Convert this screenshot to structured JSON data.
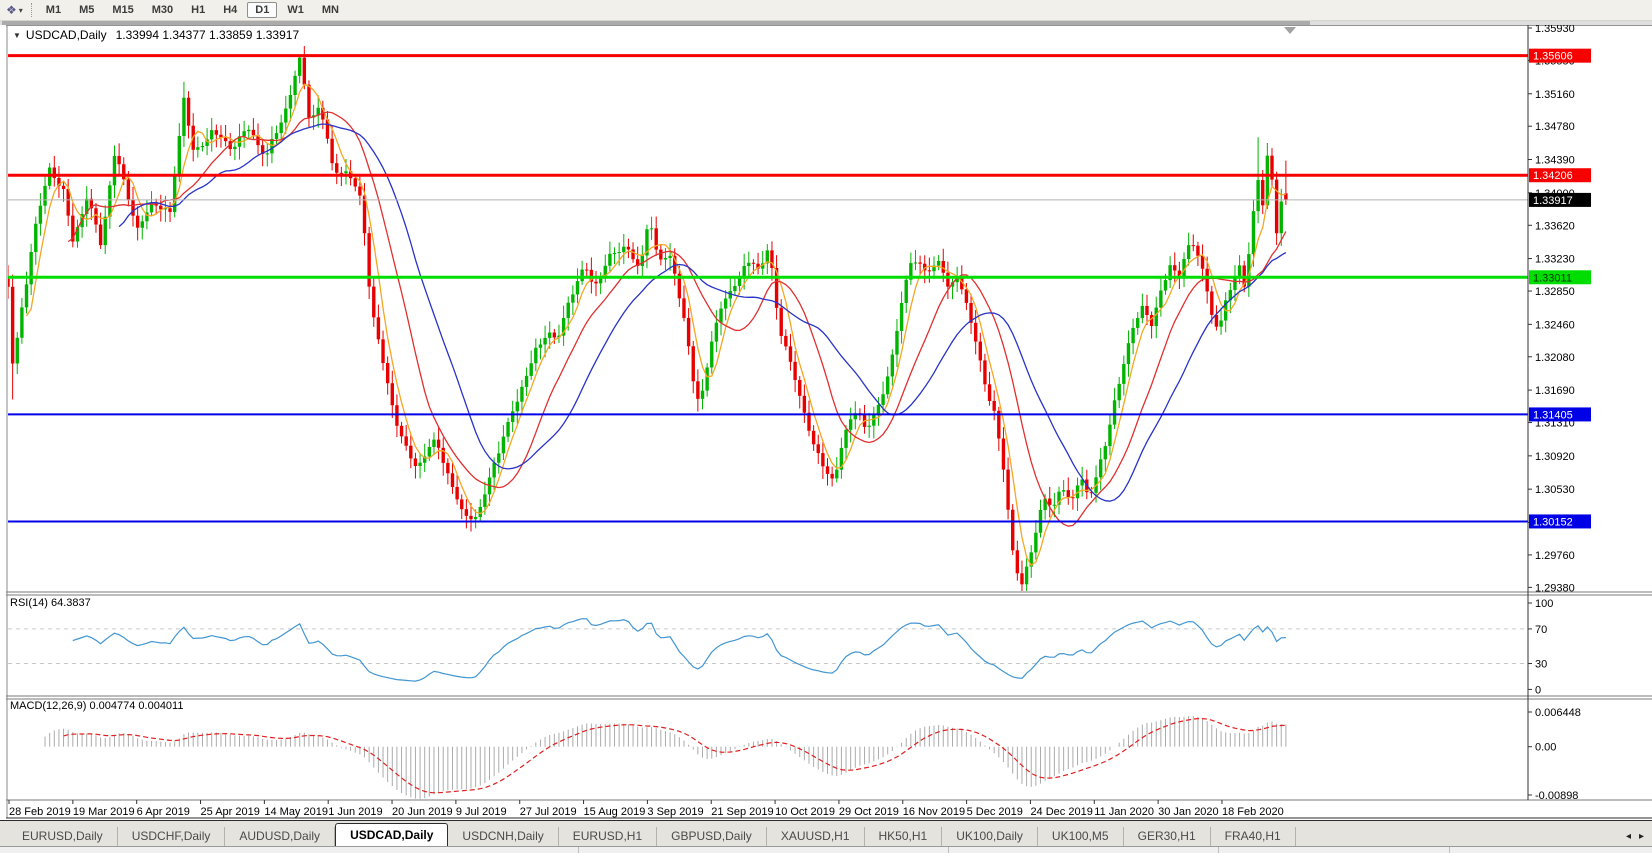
{
  "icons": {
    "charts_glyph": "❖",
    "caret_glyph": "▾",
    "title_caret": "▼",
    "shift_marker": "▼",
    "tab_prev": "◂",
    "tab_next": "▸"
  },
  "toolbar": {
    "timeframes": [
      "M1",
      "M5",
      "M15",
      "M30",
      "H1",
      "H4",
      "D1",
      "W1",
      "MN"
    ],
    "active_timeframe": "D1"
  },
  "chart": {
    "type": "candlestick",
    "symbol": "USDCAD,Daily",
    "ohlc_text": "1.33994 1.34377 1.33859 1.33917",
    "price_axis_ticks": [
      "1.35930",
      "1.35550",
      "1.35160",
      "1.34780",
      "1.34390",
      "1.34000",
      "1.33620",
      "1.33230",
      "1.32850",
      "1.32460",
      "1.32080",
      "1.31690",
      "1.31310",
      "1.30920",
      "1.30530",
      "1.30140",
      "1.29760",
      "1.29380"
    ],
    "hlines": [
      {
        "price": 1.35606,
        "label": "1.35606",
        "color": "#f60000",
        "thickness": 3,
        "label_bg": "#f60000",
        "label_fg": "#ffffff"
      },
      {
        "price": 1.34206,
        "label": "1.34206",
        "color": "#f60000",
        "thickness": 3,
        "label_bg": "#f60000",
        "label_fg": "#ffffff"
      },
      {
        "price": 1.33011,
        "label": "1.33011",
        "color": "#00dd00",
        "thickness": 3,
        "label_bg": "#00dd00",
        "label_fg": "#003300"
      },
      {
        "price": 1.31405,
        "label": "1.31405",
        "color": "#0000e6",
        "thickness": 2,
        "label_bg": "#0000e6",
        "label_fg": "#ffffff"
      },
      {
        "price": 1.30152,
        "label": "1.30152",
        "color": "#0000e6",
        "thickness": 2,
        "label_bg": "#0000e6",
        "label_fg": "#ffffff"
      }
    ],
    "current_price": {
      "price": 1.33917,
      "label": "1.33917",
      "line_color": "#b2b2b2",
      "label_bg": "#000000",
      "label_fg": "#ffffff"
    },
    "dates": [
      "28 Feb 2019",
      "19 Mar 2019",
      "6 Apr 2019",
      "25 Apr 2019",
      "14 May 2019",
      "1 Jun 2019",
      "20 Jun 2019",
      "9 Jul 2019",
      "27 Jul 2019",
      "15 Aug 2019",
      "3 Sep 2019",
      "21 Sep 2019",
      "10 Oct 2019",
      "29 Oct 2019",
      "16 Nov 2019",
      "5 Dec 2019",
      "24 Dec 2019",
      "11 Jan 2020",
      "30 Jan 2020",
      "18 Feb 2020"
    ],
    "price_path": [
      [
        8,
        1.329
      ],
      [
        13,
        1.319
      ],
      [
        22,
        1.326
      ],
      [
        36,
        1.336
      ],
      [
        50,
        1.3435
      ],
      [
        64,
        1.3405
      ],
      [
        73,
        1.3345
      ],
      [
        87,
        1.339
      ],
      [
        101,
        1.3335
      ],
      [
        115,
        1.345
      ],
      [
        125,
        1.3415
      ],
      [
        138,
        1.336
      ],
      [
        152,
        1.3385
      ],
      [
        170,
        1.337
      ],
      [
        184,
        1.3515
      ],
      [
        194,
        1.345
      ],
      [
        212,
        1.3475
      ],
      [
        230,
        1.3445
      ],
      [
        248,
        1.3475
      ],
      [
        266,
        1.345
      ],
      [
        284,
        1.349
      ],
      [
        300,
        1.355
      ],
      [
        310,
        1.348
      ],
      [
        320,
        1.3505
      ],
      [
        333,
        1.3435
      ],
      [
        348,
        1.3425
      ],
      [
        362,
        1.3385
      ],
      [
        371,
        1.326
      ],
      [
        385,
        1.319
      ],
      [
        399,
        1.3125
      ],
      [
        417,
        1.308
      ],
      [
        436,
        1.3105
      ],
      [
        450,
        1.306
      ],
      [
        462,
        1.303
      ],
      [
        478,
        1.3025
      ],
      [
        492,
        1.3075
      ],
      [
        506,
        1.3115
      ],
      [
        520,
        1.3165
      ],
      [
        534,
        1.3215
      ],
      [
        548,
        1.3245
      ],
      [
        557,
        1.3225
      ],
      [
        571,
        1.3275
      ],
      [
        585,
        1.331
      ],
      [
        594,
        1.329
      ],
      [
        608,
        1.333
      ],
      [
        626,
        1.334
      ],
      [
        640,
        1.33
      ],
      [
        649,
        1.337
      ],
      [
        658,
        1.332
      ],
      [
        672,
        1.333
      ],
      [
        686,
        1.3245
      ],
      [
        695,
        1.3165
      ],
      [
        700,
        1.315
      ],
      [
        709,
        1.3205
      ],
      [
        723,
        1.327
      ],
      [
        737,
        1.33
      ],
      [
        751,
        1.333
      ],
      [
        760,
        1.331
      ],
      [
        769,
        1.3335
      ],
      [
        778,
        1.3245
      ],
      [
        792,
        1.319
      ],
      [
        806,
        1.314
      ],
      [
        820,
        1.309
      ],
      [
        834,
        1.3062
      ],
      [
        843,
        1.3105
      ],
      [
        857,
        1.3145
      ],
      [
        866,
        1.312
      ],
      [
        880,
        1.316
      ],
      [
        894,
        1.322
      ],
      [
        903,
        1.328
      ],
      [
        912,
        1.332
      ],
      [
        926,
        1.33
      ],
      [
        940,
        1.3325
      ],
      [
        949,
        1.329
      ],
      [
        958,
        1.331
      ],
      [
        967,
        1.327
      ],
      [
        976,
        1.322
      ],
      [
        985,
        1.317
      ],
      [
        994,
        1.314
      ],
      [
        1003,
        1.308
      ],
      [
        1012,
        1.299
      ],
      [
        1021,
        1.2945
      ],
      [
        1026,
        1.296
      ],
      [
        1035,
        1.3
      ],
      [
        1044,
        1.3045
      ],
      [
        1053,
        1.302
      ],
      [
        1062,
        1.3055
      ],
      [
        1071,
        1.3035
      ],
      [
        1080,
        1.307
      ],
      [
        1089,
        1.305
      ],
      [
        1098,
        1.308
      ],
      [
        1107,
        1.311
      ],
      [
        1116,
        1.316
      ],
      [
        1125,
        1.32
      ],
      [
        1134,
        1.324
      ],
      [
        1143,
        1.327
      ],
      [
        1152,
        1.325
      ],
      [
        1161,
        1.329
      ],
      [
        1170,
        1.332
      ],
      [
        1179,
        1.33
      ],
      [
        1188,
        1.333
      ],
      [
        1195,
        1.3335
      ],
      [
        1204,
        1.33
      ],
      [
        1211,
        1.326
      ],
      [
        1218,
        1.324
      ],
      [
        1226,
        1.3285
      ],
      [
        1233,
        1.3295
      ],
      [
        1240,
        1.332
      ],
      [
        1245,
        1.3285
      ],
      [
        1252,
        1.336
      ],
      [
        1257,
        1.342
      ],
      [
        1262,
        1.3365
      ],
      [
        1267,
        1.344
      ],
      [
        1273,
        1.341
      ],
      [
        1277,
        1.3345
      ],
      [
        1282,
        1.34
      ],
      [
        1285,
        1.3392
      ]
    ],
    "bar_overrides": {
      "1": {
        "l": 1.3158
      },
      "38": {
        "h": 1.353
      },
      "63": {
        "h": 1.356
      },
      "270": {
        "h": 1.3465
      },
      "276": {
        "o": 1.33994,
        "h": 1.34377,
        "l": 1.33859,
        "c": 1.33917
      }
    }
  },
  "rsi": {
    "label": "RSI(14) 64.3837",
    "period": 14,
    "levels": [
      {
        "label": "100",
        "value": 100,
        "dashed": false
      },
      {
        "label": "70",
        "value": 70,
        "dashed": true
      },
      {
        "label": "30",
        "value": 30,
        "dashed": true
      },
      {
        "label": "0",
        "value": 0,
        "dashed": false
      }
    ]
  },
  "macd": {
    "label": "MACD(12,26,9) 0.004774 0.004011",
    "axis": [
      {
        "label": "0.006448",
        "value": 0.006448
      },
      {
        "label": "0.00",
        "value": 0
      },
      {
        "label": "-0.00898",
        "value": -0.00898
      }
    ]
  },
  "tabs": {
    "items": [
      "EURUSD,Daily",
      "USDCHF,Daily",
      "AUDUSD,Daily",
      "USDCAD,Daily",
      "USDCNH,Daily",
      "EURUSD,H1",
      "GBPUSD,Daily",
      "XAUUSD,H1",
      "HK50,H1",
      "UK100,Daily",
      "UK100,M5",
      "GER30,H1",
      "FRA40,H1"
    ],
    "active": "USDCAD,Daily"
  },
  "colors": {
    "candle_up": "#00b400",
    "candle_down": "#e80000",
    "ma_fast": "#f5a623",
    "ma_mid": "#e03030",
    "ma_slow": "#2833c8",
    "rsi_line": "#4296d2",
    "macd_hist": "#ababab",
    "macd_signal": "#e02020",
    "level_dash": "#c8c8c8",
    "axis_text": "#000000",
    "panel_border": "#7a7a7a"
  }
}
